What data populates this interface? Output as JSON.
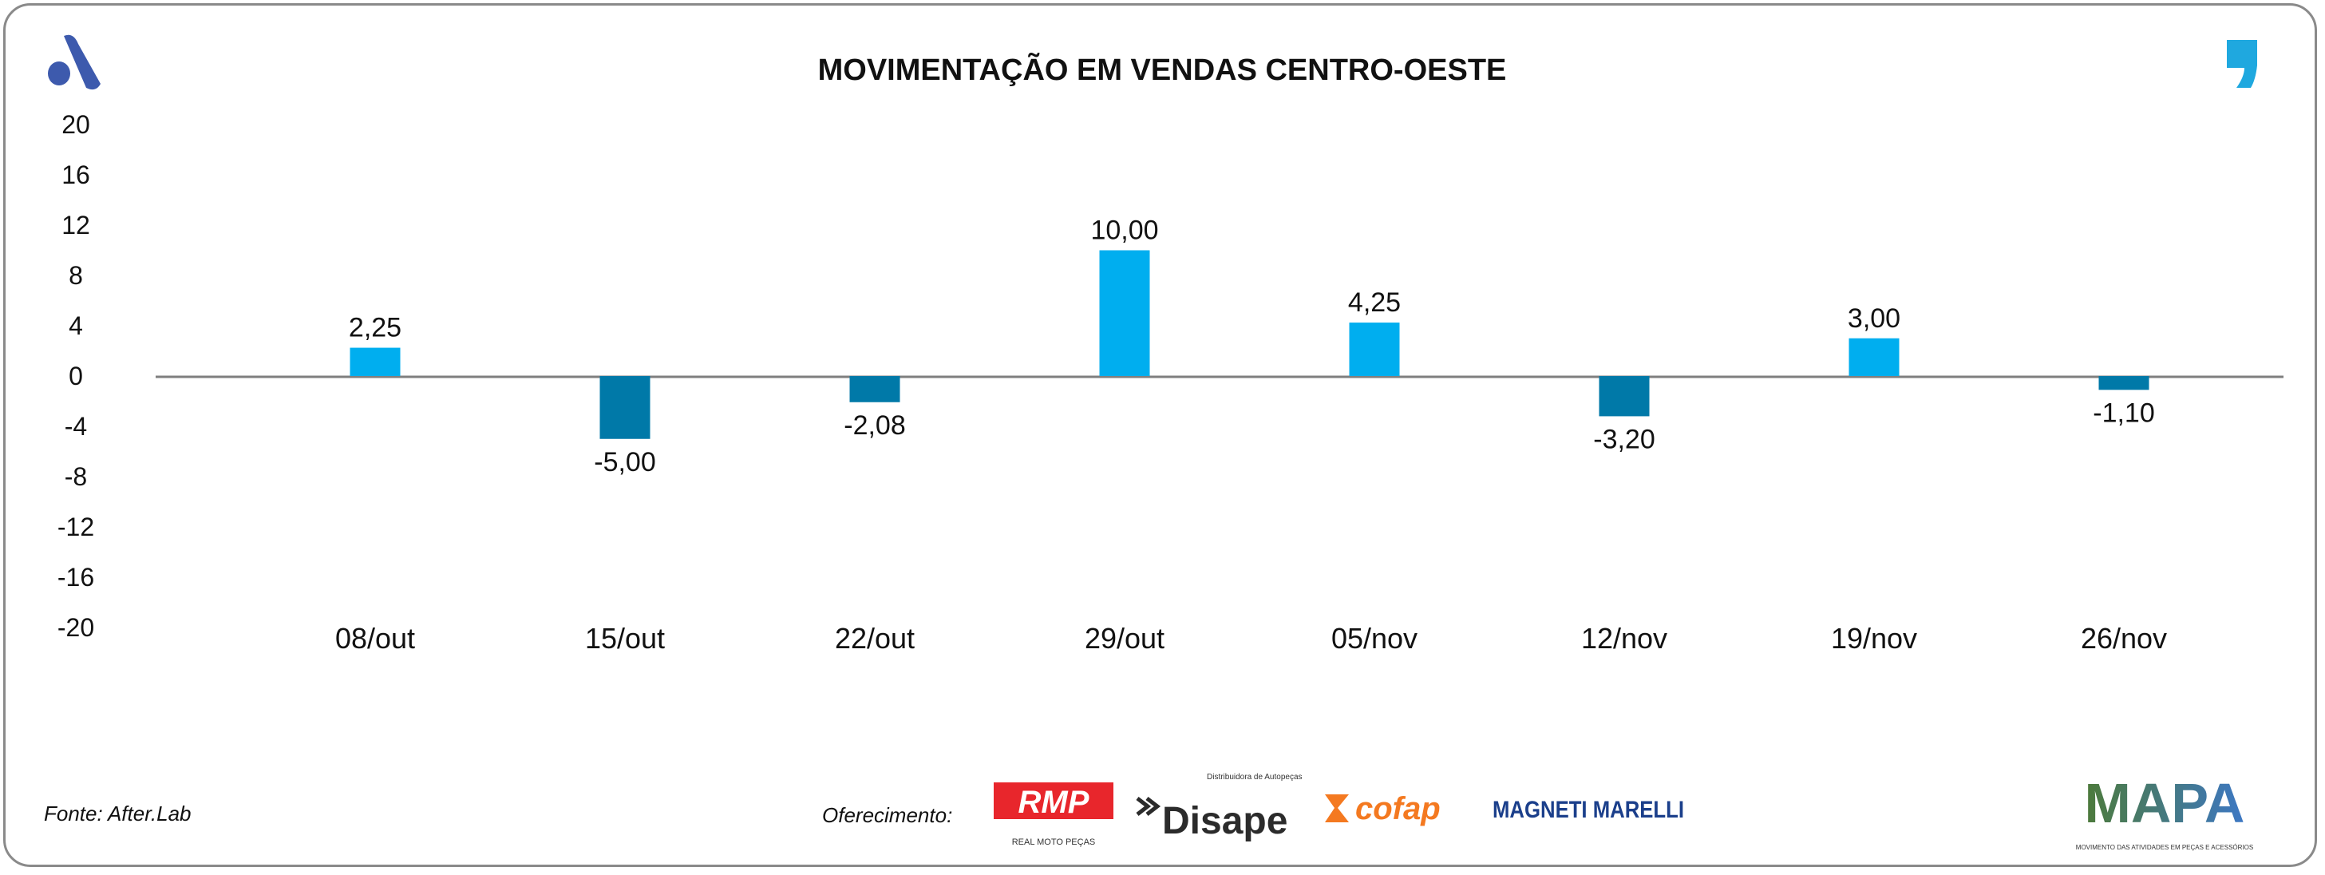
{
  "chart_data": {
    "type": "bar",
    "title": "MOVIMENTAÇÃO EM VENDAS CENTRO-OESTE",
    "categories": [
      "08/out",
      "15/out",
      "22/out",
      "29/out",
      "05/nov",
      "12/nov",
      "19/nov",
      "26/nov"
    ],
    "values": [
      2.25,
      -5.0,
      -2.08,
      10.0,
      4.25,
      -3.2,
      3.0,
      -1.1
    ],
    "data_labels": [
      "2,25",
      "-5,00",
      "-2,08",
      "10,00",
      "4,25",
      "-3,20",
      "3,00",
      "-1,10"
    ],
    "ylim": [
      -20,
      20
    ],
    "yticks": [
      20,
      16,
      12,
      8,
      4,
      0,
      -4,
      -8,
      -12,
      -16,
      -20
    ],
    "xlabel": "",
    "ylabel": "",
    "grid": false,
    "colors": {
      "positive": "#00AEEF",
      "negative": "#0079A8",
      "axis": "#7f7f7f"
    }
  },
  "footer": {
    "source": "Fonte: After.Lab",
    "sponsor_label": "Oferecimento:",
    "sponsors": [
      "RMP",
      "Disape",
      "cofap",
      "MAGNETI MARELLI"
    ],
    "sponsor_sublabels": [
      "REAL MOTO PEÇAS",
      "Distribuidora de Autopeças"
    ],
    "brand": "MAPA",
    "brand_sub": "MOVIMENTO DAS ATIVIDADES EM PEÇAS E ACESSÓRIOS"
  }
}
